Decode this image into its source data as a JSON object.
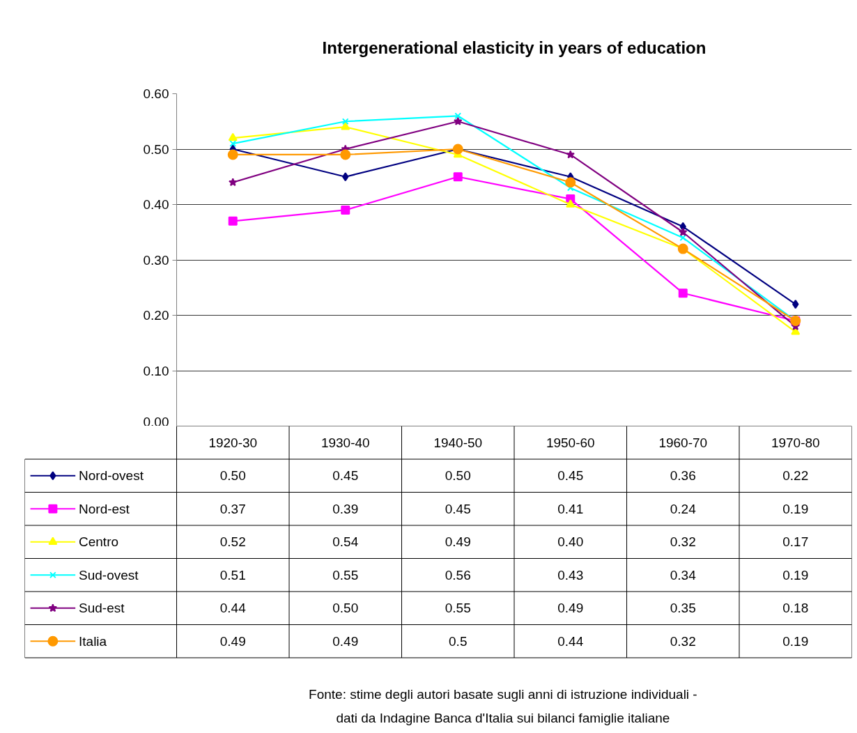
{
  "chart_data": {
    "type": "line",
    "title": "Intergenerational elasticity in years of education",
    "categories": [
      "1920-30",
      "1930-40",
      "1940-50",
      "1950-60",
      "1960-70",
      "1970-80"
    ],
    "series": [
      {
        "name": "Nord-ovest",
        "color": "#000080",
        "marker": "diamond",
        "values": [
          0.5,
          0.45,
          0.5,
          0.45,
          0.36,
          0.22
        ],
        "value_labels": [
          "0.50",
          "0.45",
          "0.50",
          "0.45",
          "0.36",
          "0.22"
        ]
      },
      {
        "name": "Nord-est",
        "color": "#ff00ff",
        "marker": "square",
        "values": [
          0.37,
          0.39,
          0.45,
          0.41,
          0.24,
          0.19
        ],
        "value_labels": [
          "0.37",
          "0.39",
          "0.45",
          "0.41",
          "0.24",
          "0.19"
        ]
      },
      {
        "name": "Centro",
        "color": "#ffff00",
        "marker": "triangle",
        "values": [
          0.52,
          0.54,
          0.49,
          0.4,
          0.32,
          0.17
        ],
        "value_labels": [
          "0.52",
          "0.54",
          "0.49",
          "0.40",
          "0.32",
          "0.17"
        ]
      },
      {
        "name": "Sud-ovest",
        "color": "#00ffff",
        "marker": "cross",
        "values": [
          0.51,
          0.55,
          0.56,
          0.43,
          0.34,
          0.19
        ],
        "value_labels": [
          "0.51",
          "0.55",
          "0.56",
          "0.43",
          "0.34",
          "0.19"
        ]
      },
      {
        "name": "Sud-est",
        "color": "#800080",
        "marker": "star",
        "values": [
          0.44,
          0.5,
          0.55,
          0.49,
          0.35,
          0.18
        ],
        "value_labels": [
          "0.44",
          "0.50",
          "0.55",
          "0.49",
          "0.35",
          "0.18"
        ]
      },
      {
        "name": "Italia",
        "color": "#ff9900",
        "marker": "circle",
        "values": [
          0.49,
          0.49,
          0.5,
          0.44,
          0.32,
          0.19
        ],
        "value_labels": [
          "0.49",
          "0.49",
          "0.5",
          "0.44",
          "0.32",
          "0.19"
        ]
      }
    ],
    "ylim": [
      0,
      0.6
    ],
    "yticks": [
      {
        "value": 0,
        "label": "0.00"
      },
      {
        "value": 0.1,
        "label": "0.10"
      },
      {
        "value": 0.2,
        "label": "0.20"
      },
      {
        "value": 0.3,
        "label": "0.30"
      },
      {
        "value": 0.4,
        "label": "0.40"
      },
      {
        "value": 0.5,
        "label": "0.50"
      },
      {
        "value": 0.6,
        "label": "0.60"
      }
    ],
    "grid": "y",
    "legend": "bottom left",
    "line_style": "solid",
    "annotations": [
      "Fonte: stime degli autori basate sugli anni di istruzione individuali -",
      "dati da Indagine Banca d'Italia sui bilanci famiglie italiane"
    ]
  }
}
